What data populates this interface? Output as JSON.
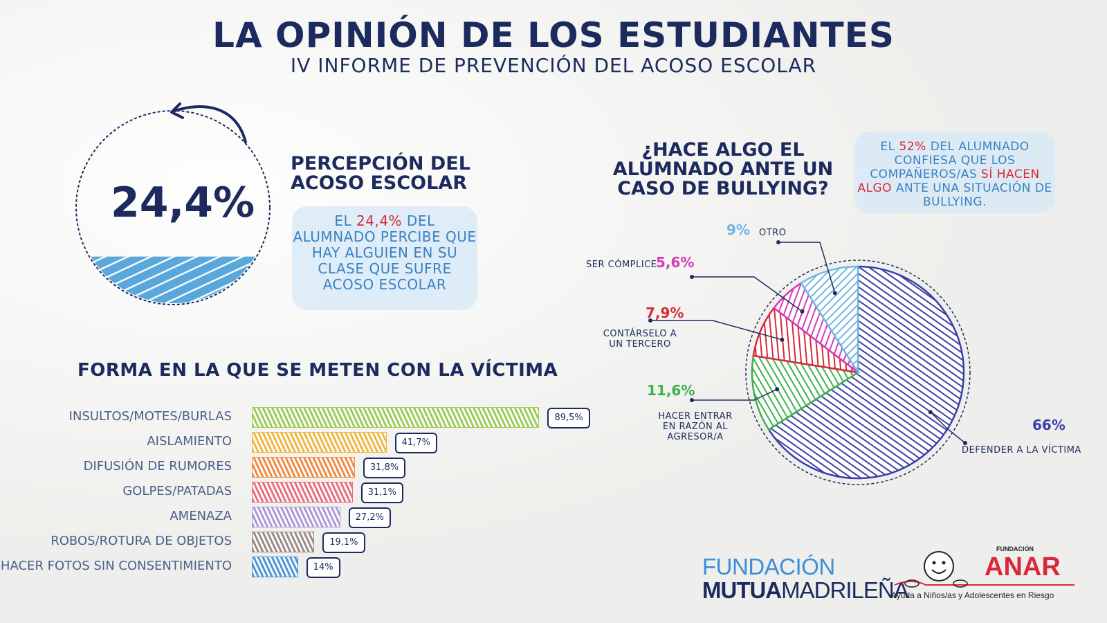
{
  "header": {
    "title": "LA OPINIÓN DE LOS ESTUDIANTES",
    "subtitle": "IV INFORME DE PREVENCIÓN DEL ACOSO ESCOLAR"
  },
  "perception": {
    "value_label": "24,4%",
    "fill_fraction": 0.244,
    "heading_line1": "PERCEPCIÓN DEL",
    "heading_line2": "ACOSO ESCOLAR",
    "note_before": "EL ",
    "note_highlight": "24,4%",
    "note_after": " DEL ALUMNADO PERCIBE QUE HAY ALGUIEN EN SU CLASE QUE SUFRE ACOSO ESCOLAR",
    "colors": {
      "fill": "#5aa7dc",
      "highlight": "#d8283a"
    }
  },
  "chart_data": [
    {
      "type": "bar",
      "orientation": "horizontal",
      "title": "FORMA EN LA QUE SE METEN CON LA VÍCTIMA",
      "categories": [
        "INSULTOS/MOTES/BURLAS",
        "AISLAMIENTO",
        "DIFUSIÓN DE RUMORES",
        "GOLPES/PATADAS",
        "AMENAZA",
        "ROBOS/ROTURA DE OBJETOS",
        "HACER FOTOS SIN CONSENTIMIENTO"
      ],
      "values": [
        89.5,
        41.7,
        31.8,
        31.1,
        27.2,
        19.1,
        14
      ],
      "value_labels": [
        "89,5%",
        "41,7%",
        "31,8%",
        "31,1%",
        "27,2%",
        "19,1%",
        "14%"
      ],
      "colors": [
        "#9ccc5a",
        "#f0b744",
        "#f08a45",
        "#e8707e",
        "#ad98d8",
        "#9b8a86",
        "#4b96d6"
      ],
      "xlim": [
        0,
        100
      ]
    },
    {
      "type": "pie",
      "title_line1": "¿HACE ALGO EL",
      "title_line2": "ALUMNADO ANTE UN",
      "title_line3": "CASO DE BULLYING?",
      "slices": [
        {
          "label": "DEFENDER A LA VÍCTIMA",
          "value": 66,
          "value_label": "66%",
          "color": "#3a3fa8"
        },
        {
          "label_line1": "HACER ENTRAR",
          "label_line2": "EN RAZÓN AL",
          "label_line3": "AGRESOR/A",
          "value": 11.6,
          "value_label": "11,6%",
          "color": "#3db04a"
        },
        {
          "label_line1": "CONTÁRSELO A",
          "label_line2": "UN TERCERO",
          "value": 7.9,
          "value_label": "7,9%",
          "color": "#d8283a"
        },
        {
          "label": "SER CÓMPLICE",
          "value": 5.6,
          "value_label": "5,6%",
          "color": "#d43ab8"
        },
        {
          "label": "OTRO",
          "value": 9,
          "value_label": "9%",
          "color": "#6fb7e0"
        }
      ],
      "note_before": "EL ",
      "note_highlight1": "52%",
      "note_middle": " DEL ALUMNADO CONFIESA QUE LOS COMPAÑEROS/AS ",
      "note_highlight2": "SÍ HACEN ALGO",
      "note_after": " ANTE UNA SITUACIÓN DE BULLYING."
    }
  ],
  "logos": {
    "mutua_line1": "FUNDACIÓN",
    "mutua_bold": "MUTUA",
    "mutua_rest": "MADRILEÑA",
    "anar_fundacion": "FUNDACIÓN",
    "anar_name": "ANAR",
    "anar_tagline": "Ayuda a Niños/as y Adolescentes en Riesgo"
  }
}
